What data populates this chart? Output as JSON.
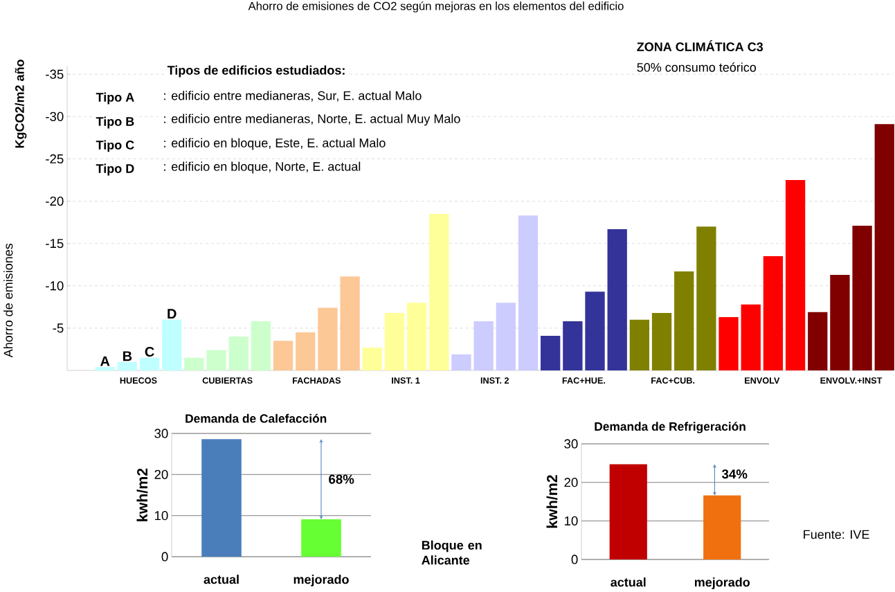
{
  "chart_data": [
    {
      "type": "bar",
      "title": "Ahorro de emisiones de CO2 según mejoras en los elementos del edificio",
      "ylabel": "Ahorro de emisiones",
      "categories": [
        "HUECOS",
        "CUBIERTAS",
        "FACHADAS",
        "INST. 1",
        "INST. 2",
        "FAC+HUE.",
        "FAC+CUB.",
        "ENVOLV",
        "ENVOLV.+INST"
      ],
      "series": [
        {
          "name": "A",
          "colors": [
            "#c0ffff",
            "#ccffcc",
            "#fcc896",
            "#ffff99",
            "#ccccff",
            "#333399",
            "#808000",
            "#ff0000",
            "#800000"
          ],
          "values": [
            -0.4,
            -1.5,
            -3.5,
            -2.7,
            -1.9,
            -4.1,
            -6.0,
            -6.3,
            -6.9
          ]
        },
        {
          "name": "B",
          "colors": [
            "#c0ffff",
            "#ccffcc",
            "#fcc896",
            "#ffff99",
            "#ccccff",
            "#333399",
            "#808000",
            "#ff0000",
            "#800000"
          ],
          "values": [
            -1.0,
            -2.4,
            -4.5,
            -6.8,
            -5.8,
            -5.8,
            -6.8,
            -7.8,
            -11.3
          ]
        },
        {
          "name": "C",
          "colors": [
            "#c0ffff",
            "#ccffcc",
            "#fcc896",
            "#ffff99",
            "#ccccff",
            "#333399",
            "#808000",
            "#ff0000",
            "#800000"
          ],
          "values": [
            -1.5,
            -4.0,
            -7.4,
            -8.0,
            -8.0,
            -9.3,
            -11.7,
            -13.5,
            -17.1
          ]
        },
        {
          "name": "D",
          "colors": [
            "#c0ffff",
            "#ccffcc",
            "#fcc896",
            "#ffff99",
            "#ccccff",
            "#333399",
            "#808000",
            "#ff0000",
            "#800000"
          ],
          "values": [
            -6.0,
            -5.8,
            -11.1,
            -18.5,
            -18.3,
            -16.7,
            -17.0,
            -22.5,
            -29.1
          ]
        }
      ],
      "ylim": [
        0,
        -36
      ],
      "yticks": [
        -35,
        -30,
        -25,
        -20,
        -15,
        -10,
        -5
      ],
      "grid": "y",
      "annotations": [
        "Tipos de edificios estudiados:",
        "Tipo A",
        ": edificio entre medianeras, Sur, E. actual Malo",
        "Tipo B",
        ": edificio entre medianeras,  Norte, E. actual Muy Malo",
        "Tipo C",
        ": edificio en bloque, Este, E. actual Malo",
        "Tipo D",
        ": edificio en bloque, Norte, E. actual",
        "ZONA CLIMÁTICA C3",
        "50% consumo teórico",
        "KgCO2/m2 año"
      ]
    },
    {
      "type": "bar",
      "title": "Demanda de Calefacción",
      "ylabel": "kwh/m2",
      "categories": [
        "actual",
        "mejorado"
      ],
      "values": [
        28.6,
        9.1
      ],
      "colors": [
        "#4a7ebb",
        "#66ff33"
      ],
      "ylim": [
        0,
        30
      ],
      "yticks": [
        0,
        10,
        20,
        30
      ],
      "grid": "y",
      "annotations": [
        "68%",
        "Bloque en Alicante"
      ]
    },
    {
      "type": "bar",
      "title": "Demanda de Refrigeración",
      "ylabel": "kwh/m2",
      "categories": [
        "actual",
        "mejorado"
      ],
      "values": [
        24.7,
        16.6
      ],
      "colors": [
        "#c00000",
        "#f07010"
      ],
      "ylim": [
        0,
        30
      ],
      "yticks": [
        0,
        10,
        20,
        30
      ],
      "grid": "y",
      "annotations": [
        "34%",
        "Fuente: IVE"
      ]
    }
  ]
}
